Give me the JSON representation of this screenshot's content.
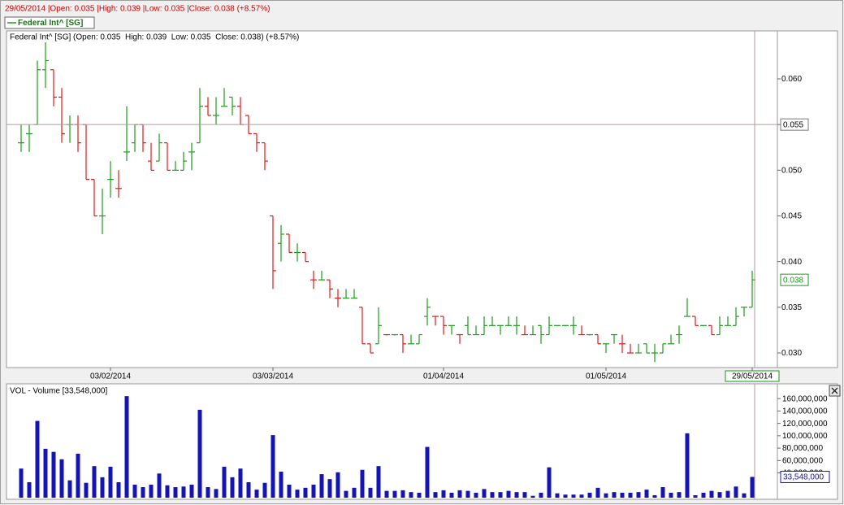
{
  "header": {
    "text": "29/05/2014 |Open: 0.035 |High: 0.039 |Low: 0.035 |Close: 0.038 (+8.57%)"
  },
  "legend": "Federal Int^ [SG]",
  "chart_data": [
    {
      "type": "ohlc",
      "title": "Federal Int^ [SG] (Open: 0.035  High: 0.039  Low: 0.035  Close: 0.038) (+8.57%)",
      "categories": [
        null,
        null,
        null,
        null,
        null,
        null,
        null,
        null,
        null,
        null,
        null,
        "03/02/2014",
        null,
        null,
        null,
        null,
        null,
        null,
        null,
        null,
        null,
        null,
        null,
        null,
        null,
        null,
        null,
        null,
        null,
        null,
        null,
        "03/03/2014",
        null,
        null,
        null,
        null,
        null,
        null,
        null,
        null,
        null,
        null,
        null,
        null,
        null,
        null,
        null,
        null,
        null,
        null,
        null,
        null,
        "01/04/2014",
        null,
        null,
        null,
        null,
        null,
        null,
        null,
        null,
        null,
        null,
        null,
        null,
        null,
        null,
        null,
        null,
        null,
        null,
        null,
        "01/05/2014",
        null,
        null,
        null,
        null,
        null,
        null,
        null,
        null,
        null,
        null,
        null,
        null,
        null,
        null,
        null,
        null,
        null,
        "29/05/2014"
      ],
      "open": [
        0.053,
        0.054,
        0.055,
        0.061,
        0.061,
        0.058,
        0.055,
        0.055,
        0.055,
        0.049,
        0.045,
        0.049,
        0.048,
        0.052,
        0.053,
        0.055,
        0.051,
        0.051,
        0.053,
        0.05,
        0.05,
        0.052,
        0.053,
        0.057,
        0.056,
        0.057,
        0.058,
        0.057,
        0.056,
        0.054,
        0.053,
        0.045,
        0.042,
        0.043,
        0.041,
        0.041,
        0.038,
        0.038,
        0.038,
        0.036,
        0.036,
        0.036,
        0.035,
        0.031,
        0.031,
        0.032,
        0.032,
        0.032,
        0.031,
        0.031,
        0.034,
        0.034,
        0.034,
        0.033,
        0.032,
        0.033,
        0.032,
        0.032,
        0.033,
        0.033,
        0.033,
        0.033,
        0.032,
        0.032,
        0.033,
        0.032,
        0.033,
        0.033,
        0.033,
        0.032,
        0.032,
        0.032,
        0.031,
        0.032,
        0.031,
        0.03,
        0.03,
        0.031,
        0.03,
        0.03,
        0.031,
        0.032,
        0.034,
        0.034,
        0.033,
        0.033,
        0.032,
        0.033,
        0.033,
        0.035,
        0.035
      ],
      "high": [
        0.055,
        0.055,
        0.062,
        0.064,
        0.061,
        0.059,
        0.056,
        0.056,
        0.055,
        0.049,
        0.048,
        0.051,
        0.05,
        0.057,
        0.055,
        0.055,
        0.053,
        0.054,
        0.053,
        0.051,
        0.052,
        0.053,
        0.059,
        0.058,
        0.058,
        0.059,
        0.058,
        0.058,
        0.056,
        0.054,
        0.053,
        0.045,
        0.044,
        0.043,
        0.042,
        0.041,
        0.039,
        0.039,
        0.038,
        0.037,
        0.037,
        0.037,
        0.035,
        0.031,
        0.035,
        0.032,
        0.032,
        0.032,
        0.032,
        0.032,
        0.036,
        0.034,
        0.034,
        0.033,
        0.032,
        0.034,
        0.033,
        0.034,
        0.034,
        0.033,
        0.034,
        0.034,
        0.033,
        0.033,
        0.033,
        0.034,
        0.033,
        0.033,
        0.034,
        0.033,
        0.032,
        0.032,
        0.031,
        0.032,
        0.032,
        0.031,
        0.031,
        0.031,
        0.031,
        0.031,
        0.032,
        0.033,
        0.036,
        0.034,
        0.033,
        0.033,
        0.034,
        0.034,
        0.035,
        0.035,
        0.039
      ],
      "low": [
        0.052,
        0.052,
        0.055,
        0.059,
        0.057,
        0.053,
        0.053,
        0.052,
        0.049,
        0.045,
        0.043,
        0.047,
        0.047,
        0.051,
        0.052,
        0.052,
        0.05,
        0.051,
        0.05,
        0.05,
        0.05,
        0.05,
        0.053,
        0.056,
        0.055,
        0.057,
        0.056,
        0.055,
        0.054,
        0.052,
        0.05,
        0.037,
        0.04,
        0.041,
        0.04,
        0.04,
        0.037,
        0.038,
        0.036,
        0.035,
        0.036,
        0.036,
        0.031,
        0.03,
        0.031,
        0.032,
        0.032,
        0.03,
        0.031,
        0.031,
        0.033,
        0.033,
        0.032,
        0.032,
        0.031,
        0.032,
        0.032,
        0.032,
        0.033,
        0.032,
        0.033,
        0.032,
        0.032,
        0.032,
        0.031,
        0.032,
        0.033,
        0.033,
        0.032,
        0.032,
        0.032,
        0.031,
        0.03,
        0.031,
        0.03,
        0.03,
        0.03,
        0.03,
        0.029,
        0.03,
        0.031,
        0.031,
        0.034,
        0.033,
        0.033,
        0.032,
        0.032,
        0.033,
        0.033,
        0.034,
        0.035
      ],
      "close": [
        0.053,
        0.054,
        0.061,
        0.062,
        0.058,
        0.054,
        0.055,
        0.053,
        0.049,
        0.045,
        0.045,
        0.049,
        0.048,
        0.052,
        0.055,
        0.053,
        0.05,
        0.053,
        0.05,
        0.05,
        0.051,
        0.052,
        0.057,
        0.056,
        0.056,
        0.057,
        0.057,
        0.055,
        0.054,
        0.053,
        0.051,
        0.039,
        0.043,
        0.041,
        0.041,
        0.04,
        0.038,
        0.038,
        0.037,
        0.036,
        0.036,
        0.036,
        0.031,
        0.03,
        0.033,
        0.032,
        0.032,
        0.031,
        0.031,
        0.032,
        0.035,
        0.034,
        0.033,
        0.033,
        0.032,
        0.032,
        0.032,
        0.033,
        0.033,
        0.033,
        0.033,
        0.033,
        0.032,
        0.032,
        0.032,
        0.033,
        0.033,
        0.033,
        0.033,
        0.032,
        0.032,
        0.031,
        0.031,
        0.032,
        0.031,
        0.03,
        0.03,
        0.03,
        0.03,
        0.031,
        0.031,
        0.032,
        0.034,
        0.033,
        0.033,
        0.032,
        0.033,
        0.033,
        0.034,
        0.035,
        0.038
      ],
      "up_color": "#1e9a1e",
      "down_color": "#dd1a1a",
      "ylim": [
        0.0284,
        0.06525
      ],
      "yticks": [
        {
          "value": 0.03,
          "label": "0.030"
        },
        {
          "value": 0.035,
          "label": "0.035"
        },
        {
          "value": 0.04,
          "label": "0.040"
        },
        {
          "value": 0.045,
          "label": "0.045"
        },
        {
          "value": 0.05,
          "label": "0.050"
        },
        {
          "value": 0.055,
          "label": "0.055"
        },
        {
          "value": 0.06,
          "label": "0.060"
        }
      ],
      "grid": false,
      "crosshair": {
        "value": 0.055,
        "label": "0.055"
      },
      "last_label": {
        "value": 0.038,
        "label": "0.038"
      }
    },
    {
      "type": "bar",
      "title": "VOL - Volume [33,548,000]",
      "values": [
        47000000,
        25000000,
        124000000,
        79000000,
        74000000,
        62000000,
        28000000,
        71000000,
        24000000,
        51000000,
        33000000,
        50000000,
        25000000,
        164000000,
        21000000,
        17000000,
        21000000,
        39000000,
        20000000,
        17000000,
        18000000,
        21000000,
        142000000,
        17000000,
        14000000,
        50000000,
        33000000,
        47000000,
        25000000,
        13000000,
        24000000,
        101000000,
        42000000,
        21000000,
        13000000,
        16000000,
        21000000,
        38000000,
        30000000,
        41000000,
        11000000,
        16000000,
        45000000,
        16000000,
        51000000,
        11000000,
        11000000,
        12000000,
        9000000,
        8000000,
        82000000,
        9000000,
        12000000,
        8000000,
        12000000,
        11000000,
        8000000,
        14000000,
        9000000,
        9000000,
        11000000,
        9000000,
        9000000,
        3000000,
        8000000,
        49000000,
        7000000,
        5000000,
        5000000,
        5000000,
        8000000,
        16000000,
        7000000,
        9000000,
        8000000,
        8000000,
        9000000,
        13000000,
        4000000,
        17000000,
        8000000,
        9000000,
        104000000,
        4000000,
        8000000,
        11000000,
        9000000,
        11000000,
        18000000,
        7000000,
        33548000
      ],
      "color": "#1414b4",
      "ylim": [
        0,
        176000000
      ],
      "yticks": [
        {
          "value": 40000000,
          "label": "40,000,000"
        },
        {
          "value": 60000000,
          "label": "60,000,000"
        },
        {
          "value": 80000000,
          "label": "80,000,000"
        },
        {
          "value": 100000000,
          "label": "100,000,000"
        },
        {
          "value": 120000000,
          "label": "120,000,000"
        },
        {
          "value": 140000000,
          "label": "140,000,000"
        },
        {
          "value": 160000000,
          "label": "160,000,000"
        }
      ],
      "grid": false,
      "last_label": {
        "value": 33548000,
        "label": "33,548,000"
      }
    }
  ]
}
